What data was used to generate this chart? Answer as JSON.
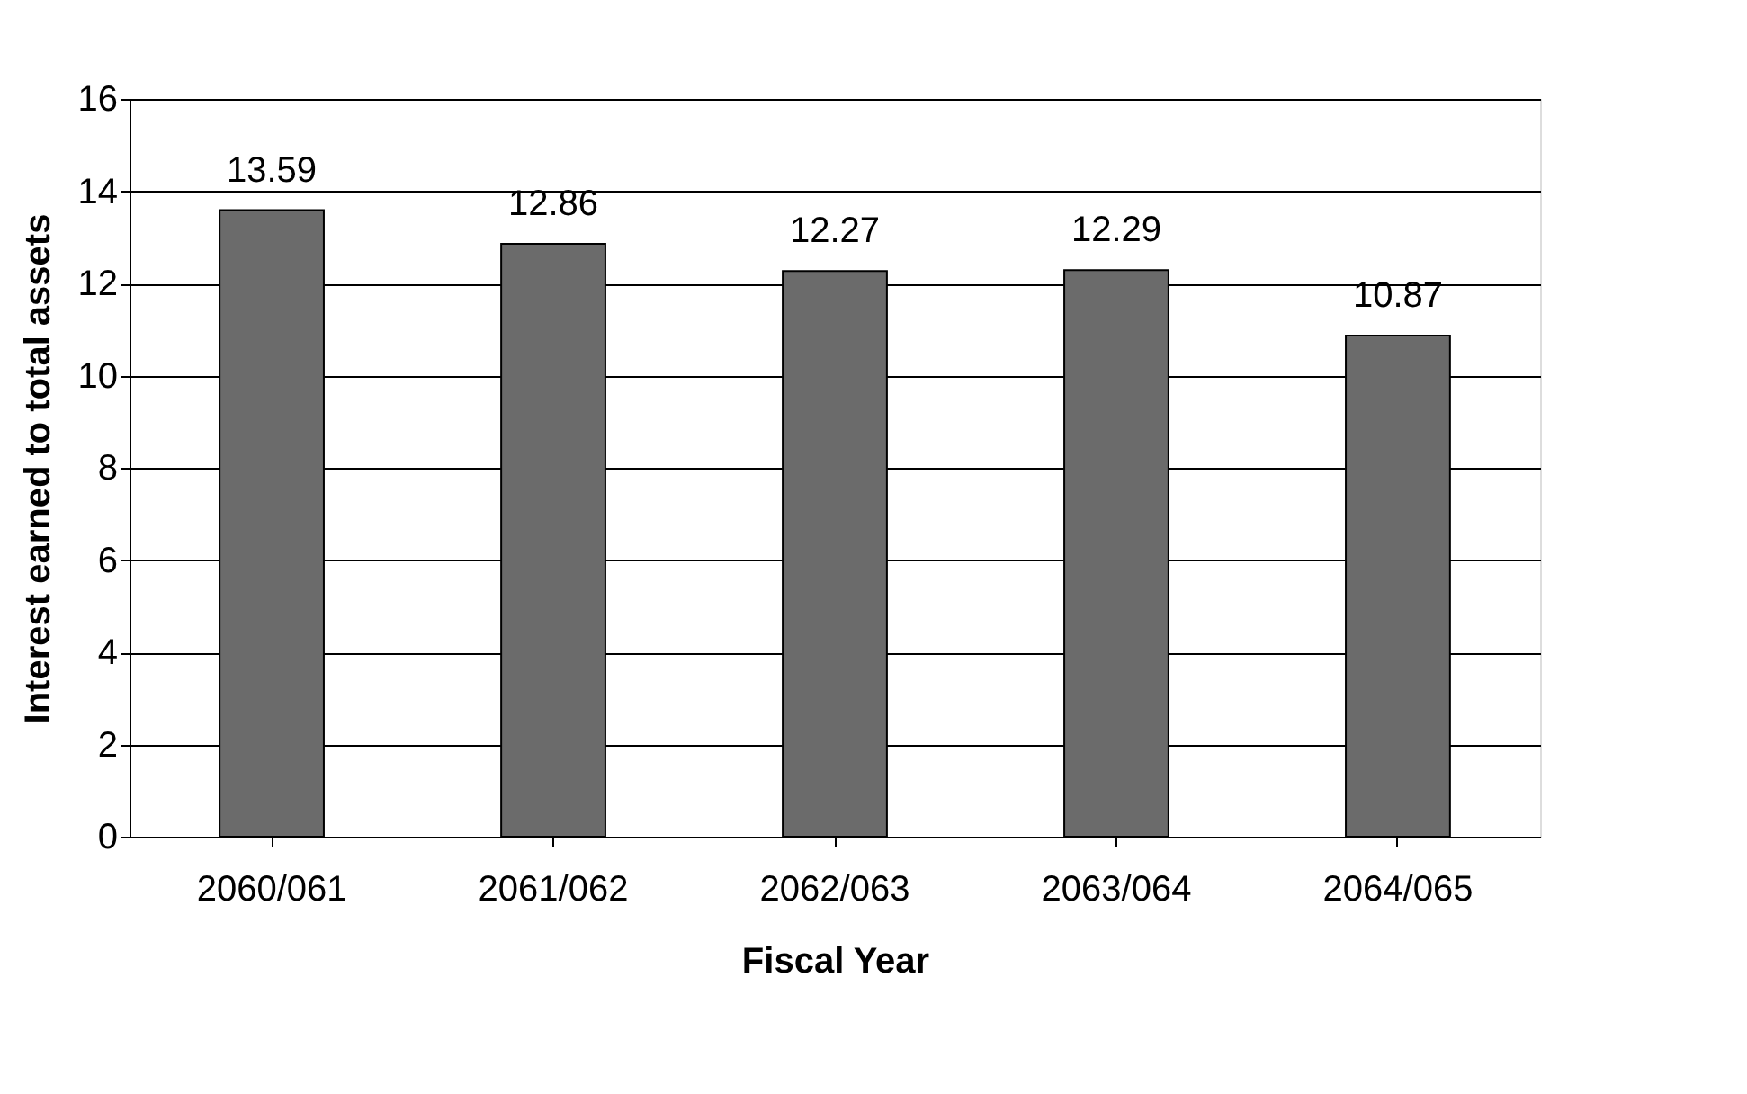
{
  "chart_data": {
    "type": "bar",
    "xlabel": "Fiscal Year",
    "ylabel": "Interest earned to total assets",
    "categories": [
      "2060/061",
      "2061/062",
      "2062/063",
      "2063/064",
      "2064/065"
    ],
    "values": [
      13.59,
      12.86,
      12.27,
      12.29,
      10.87
    ],
    "color": "#6b6b6b",
    "ylim": [
      0,
      16
    ],
    "yticks": [
      0,
      2,
      4,
      6,
      8,
      10,
      12,
      14,
      16
    ],
    "grid": "y",
    "data_labels": true,
    "legend": false
  }
}
